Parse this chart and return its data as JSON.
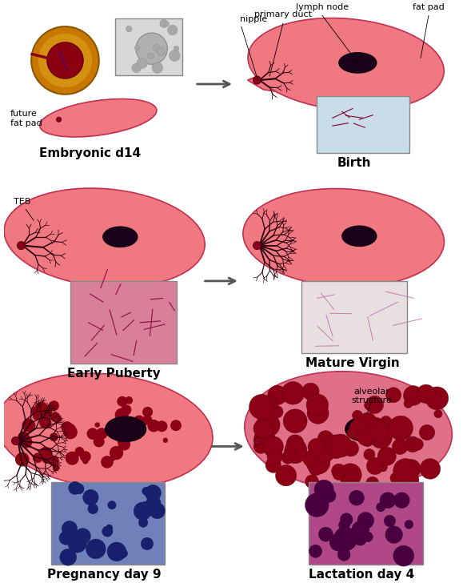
{
  "bg_color": "#ffffff",
  "fat_pad_color": "#f07880",
  "fat_pad_edge": "#c03050",
  "duct_color": "#2a0010",
  "lymph_node_color": "#1a0018",
  "nipple_color": "#8b0020",
  "arrow_color": "#555555",
  "label_fontsize": 8,
  "stage_fontsize": 11,
  "box_embryo": "#d8d8d8",
  "box_birth": "#c8dde8",
  "box_puberty": "#d8809a",
  "box_virgin": "#e8e0e0",
  "box_pregnancy": "#7080b8",
  "box_lactation": "#b04888",
  "embryo_outer": "#c87800",
  "embryo_mid": "#d49010",
  "embryo_inner": "#8b0010",
  "stages": [
    "Embryonic d14",
    "Birth",
    "Early Puberty",
    "Mature Virgin",
    "Pregnancy day 9",
    "Lactation day 4"
  ]
}
